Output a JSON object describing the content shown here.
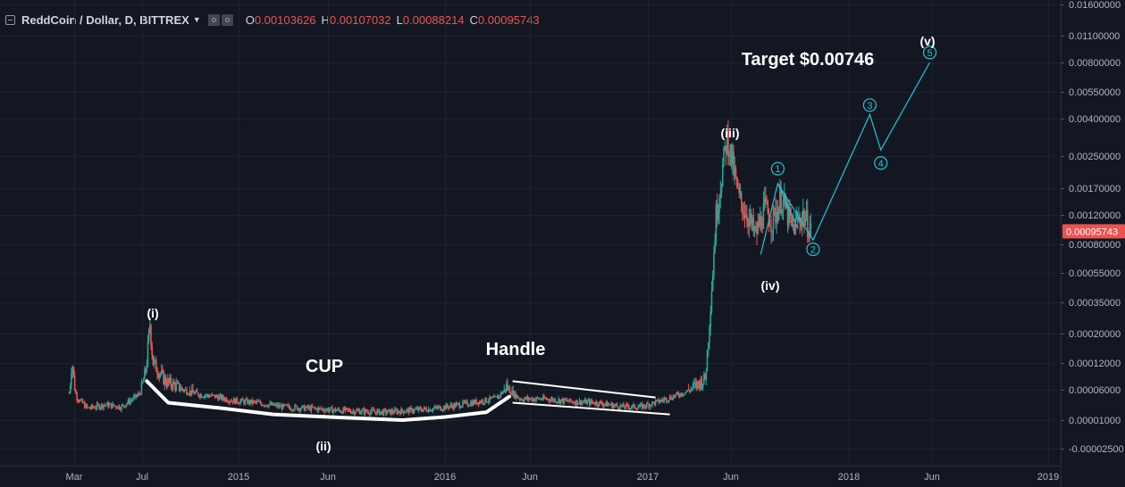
{
  "header": {
    "symbol_title": "ReddCoin / Dollar, D, BITTREX",
    "ohlc": [
      {
        "key": "O",
        "value": "0.00103626"
      },
      {
        "key": "H",
        "value": "0.00107032"
      },
      {
        "key": "L",
        "value": "0.00088214"
      },
      {
        "key": "C",
        "value": "0.00095743"
      }
    ]
  },
  "chart_data": {
    "type": "candlestick",
    "title": "ReddCoin / Dollar, D, BITTREX",
    "y_scale": "log",
    "y_ticks": [
      "0.01600000",
      "0.01100000",
      "0.00800000",
      "0.00550000",
      "0.00400000",
      "0.00250000",
      "0.00170000",
      "0.00120000",
      "0.00080000",
      "0.00055000",
      "0.00035000",
      "0.00020000",
      "0.00012000",
      "0.00006000",
      "0.00001000",
      "-0.00002500"
    ],
    "x_ticks": [
      "Mar",
      "Jul",
      "2015",
      "Jun",
      "2016",
      "Jun",
      "2017",
      "Jun",
      "2018",
      "Jun",
      "2019"
    ],
    "last_price": "0.00095743",
    "price_path": [
      [
        "2014-02-20",
        5e-05
      ],
      [
        "2014-02-25",
        0.00013
      ],
      [
        "2014-03-05",
        4e-05
      ],
      [
        "2014-03-25",
        2e-05
      ],
      [
        "2014-04-25",
        2.5e-05
      ],
      [
        "2014-05-25",
        2.2e-05
      ],
      [
        "2014-06-25",
        4.5e-05
      ],
      [
        "2014-07-08",
        0.0001
      ],
      [
        "2014-07-16",
        0.00024
      ],
      [
        "2014-07-22",
        0.00012
      ],
      [
        "2014-08-15",
        7.5e-05
      ],
      [
        "2014-09-15",
        6e-05
      ],
      [
        "2014-10-20",
        4.5e-05
      ],
      [
        "2014-11-20",
        4e-05
      ],
      [
        "2014-12-20",
        3.2e-05
      ],
      [
        "2015-02-01",
        2.8e-05
      ],
      [
        "2015-03-15",
        2.2e-05
      ],
      [
        "2015-05-01",
        2e-05
      ],
      [
        "2015-06-15",
        1.8e-05
      ],
      [
        "2015-08-01",
        1.7e-05
      ],
      [
        "2015-09-15",
        1.6e-05
      ],
      [
        "2015-11-01",
        1.8e-05
      ],
      [
        "2015-12-15",
        2e-05
      ],
      [
        "2016-01-20",
        2.4e-05
      ],
      [
        "2016-03-01",
        3e-05
      ],
      [
        "2016-04-01",
        3.6e-05
      ],
      [
        "2016-04-20",
        6.5e-05
      ],
      [
        "2016-05-15",
        3.5e-05
      ],
      [
        "2016-07-01",
        3.5e-05
      ],
      [
        "2016-08-15",
        3e-05
      ],
      [
        "2016-10-01",
        2.8e-05
      ],
      [
        "2016-11-15",
        2.2e-05
      ],
      [
        "2016-12-20",
        2.2e-05
      ],
      [
        "2017-01-20",
        3e-05
      ],
      [
        "2017-02-25",
        4.5e-05
      ],
      [
        "2017-03-20",
        6e-05
      ],
      [
        "2017-04-15",
        8e-05
      ],
      [
        "2017-04-25",
        0.00035
      ],
      [
        "2017-05-05",
        0.0012
      ],
      [
        "2017-05-15",
        0.002
      ],
      [
        "2017-05-25",
        0.0032
      ],
      [
        "2017-06-01",
        0.0025
      ],
      [
        "2017-06-15",
        0.0015
      ],
      [
        "2017-07-01",
        0.0012
      ],
      [
        "2017-07-15",
        0.0009
      ],
      [
        "2017-08-01",
        0.0013
      ],
      [
        "2017-08-15",
        0.0011
      ],
      [
        "2017-09-01",
        0.0015
      ],
      [
        "2017-09-20",
        0.001
      ],
      [
        "2017-10-10",
        0.0012
      ],
      [
        "2017-10-25",
        0.000957
      ]
    ]
  },
  "annotations": {
    "wave_i": "(i)",
    "wave_ii": "(ii)",
    "wave_iii": "(iii)",
    "wave_iv": "(iv)",
    "wave_v": "(v)",
    "cup": "CUP",
    "handle": "Handle",
    "target": "Target $0.00746",
    "projection_labels": [
      "1",
      "2",
      "3",
      "4",
      "5"
    ]
  },
  "colors": {
    "background": "#131722",
    "grid": "#1e222d",
    "up": "#26a69a",
    "down": "#ef5350",
    "annotation_line": "#22c7d6",
    "annotation_text": "#ffffff",
    "price_tag": "#ef5350"
  }
}
